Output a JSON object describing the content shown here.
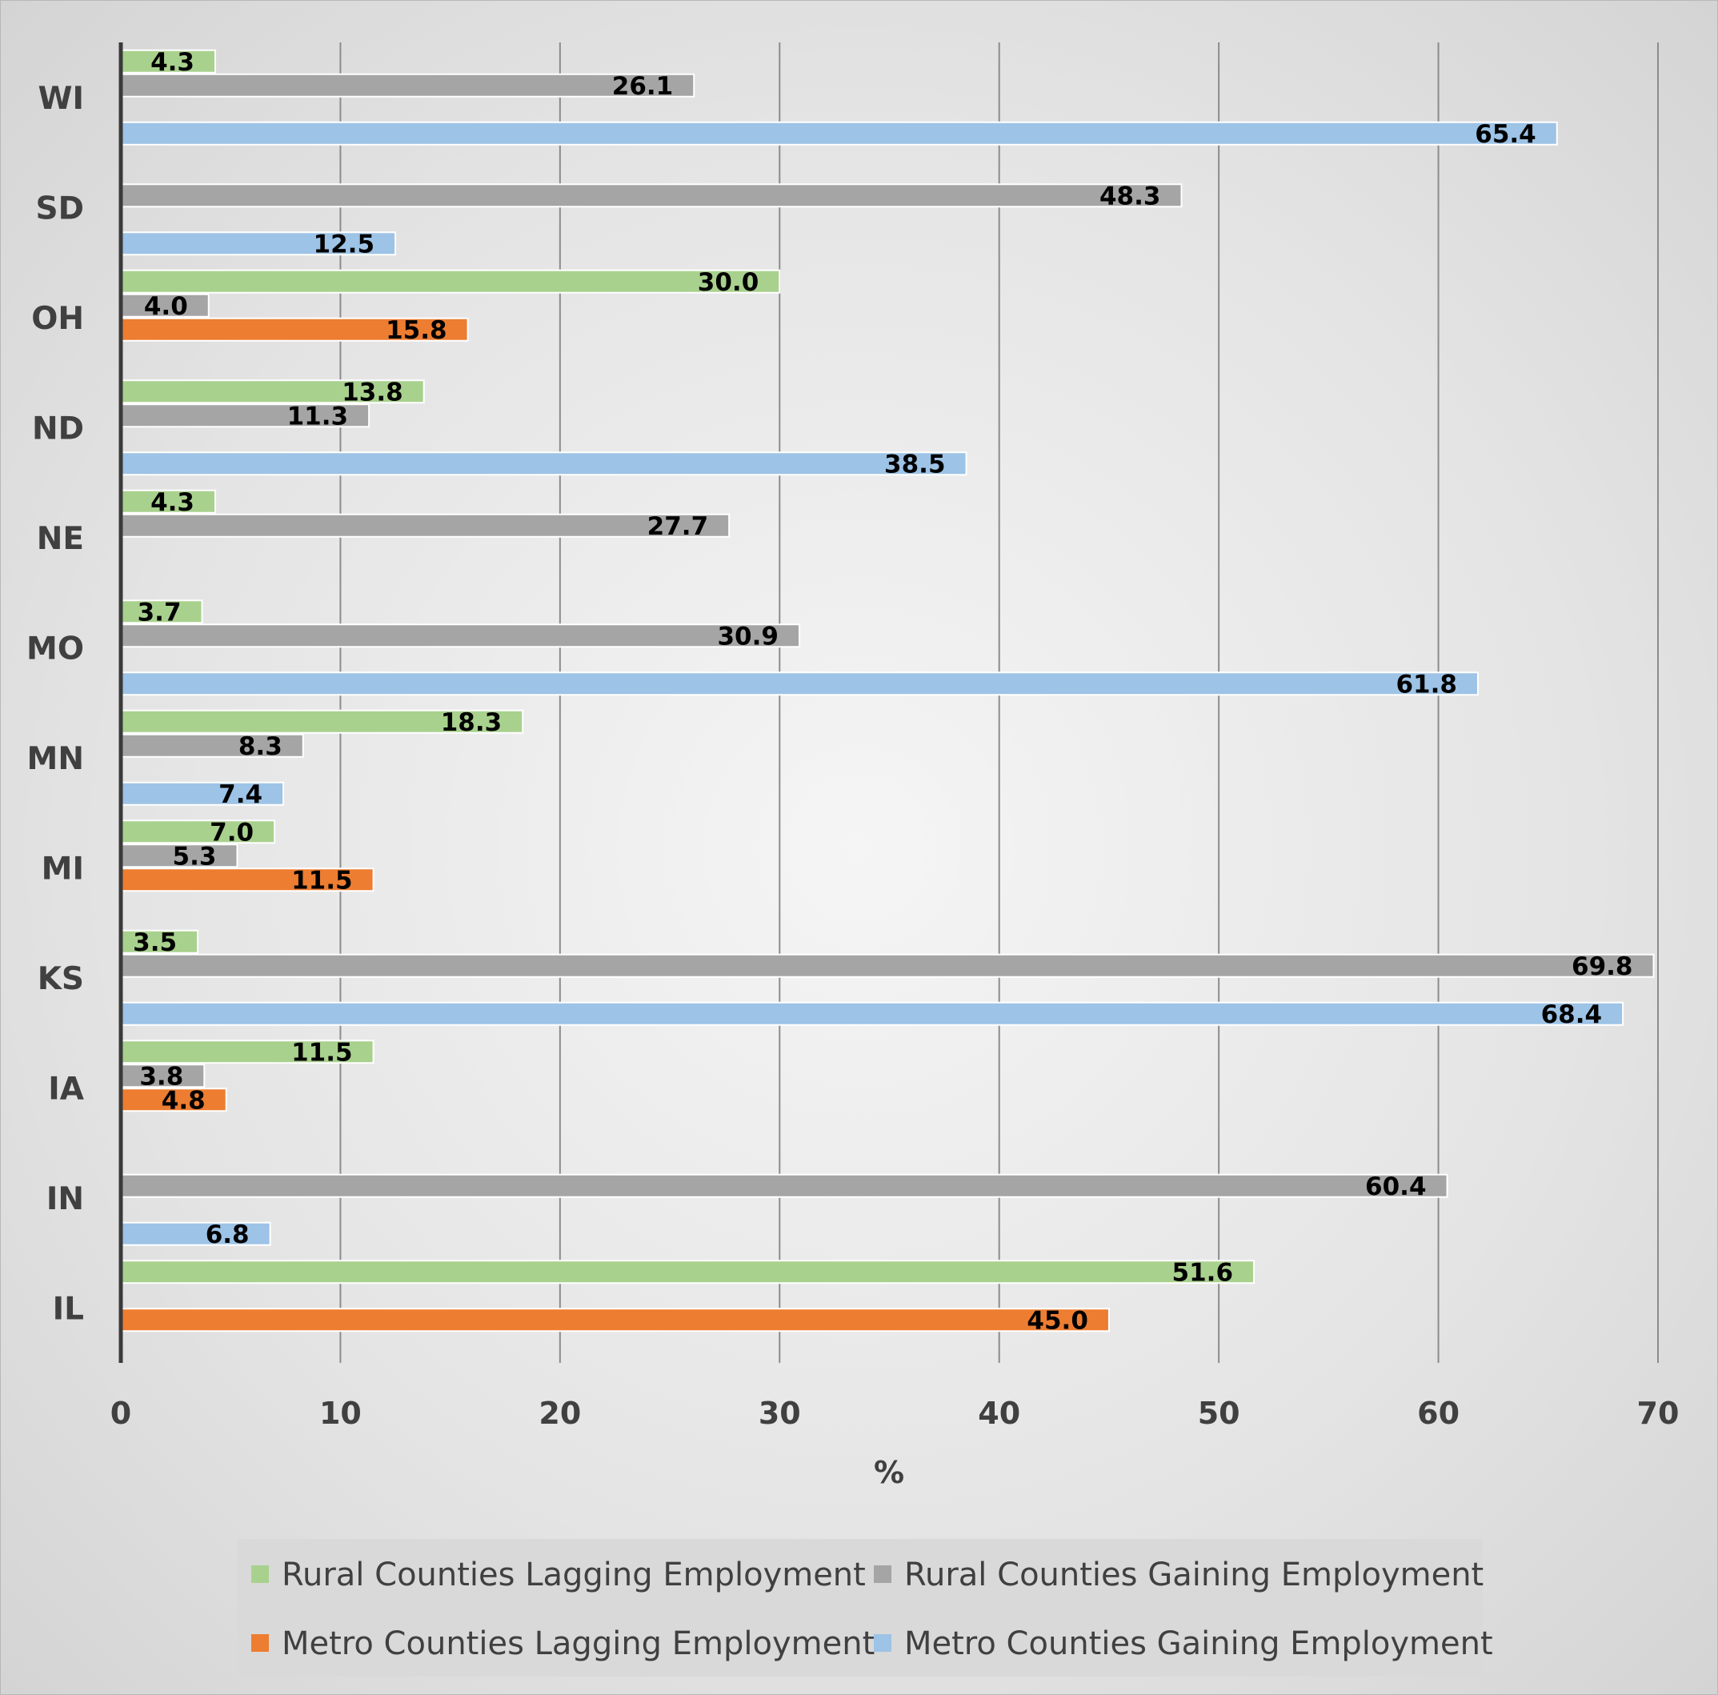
{
  "chart_data": {
    "type": "bar",
    "orientation": "horizontal",
    "categories": [
      "WI",
      "SD",
      "OH",
      "ND",
      "NE",
      "MO",
      "MN",
      "MI",
      "KS",
      "IA",
      "IN",
      "IL"
    ],
    "series": [
      {
        "name": "Rural Counties Lagging Employment",
        "color": "#a9d18e",
        "values": [
          4.3,
          null,
          30.0,
          13.8,
          4.3,
          3.7,
          18.3,
          7.0,
          3.5,
          11.5,
          null,
          51.6
        ]
      },
      {
        "name": "Rural Counties Gaining Employment",
        "color": "#a5a5a5",
        "values": [
          26.1,
          48.3,
          4.0,
          11.3,
          27.7,
          30.9,
          8.3,
          5.3,
          69.8,
          3.8,
          60.4,
          null
        ]
      },
      {
        "name": "Metro Counties Lagging Employment",
        "color": "#ed7d31",
        "values": [
          null,
          null,
          15.8,
          null,
          null,
          null,
          null,
          11.5,
          null,
          4.8,
          null,
          45.0
        ]
      },
      {
        "name": "Metro Counties Gaining Employment",
        "color": "#9dc3e6",
        "values": [
          65.4,
          12.5,
          null,
          38.5,
          null,
          61.8,
          7.4,
          null,
          68.4,
          null,
          6.8,
          null
        ]
      }
    ],
    "xlabel": "%",
    "ylabel": "",
    "xlim": [
      0,
      70
    ],
    "xticks": [
      "0",
      "10",
      "20",
      "30",
      "40",
      "50",
      "60",
      "70"
    ],
    "grid": "vertical",
    "legend": "bottom"
  }
}
